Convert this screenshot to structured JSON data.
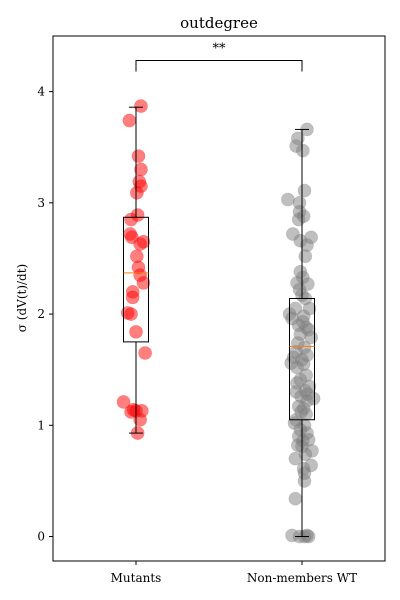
{
  "chart_data": {
    "type": "scatter",
    "title": "outdegree",
    "xlabel": "",
    "ylabel": "σ (dV(t)/dt)",
    "categories": [
      "Mutants",
      "Non-members WT"
    ],
    "ylim": [
      -0.22,
      4.5
    ],
    "yticks": [
      0,
      1,
      2,
      3,
      4
    ],
    "grid": false,
    "legend": "none",
    "significance": {
      "label": "**",
      "between": [
        "Mutants",
        "Non-members WT"
      ],
      "level": 4.28
    },
    "series": [
      {
        "category": "Mutants",
        "color": "#ff0000",
        "box": {
          "whisker_low": 0.93,
          "q1": 1.75,
          "median": 2.37,
          "q3": 2.87,
          "whisker_high": 3.86
        },
        "points": [
          {
            "x": 0.06,
            "y": 3.87
          },
          {
            "x": -0.08,
            "y": 3.74
          },
          {
            "x": 0.03,
            "y": 3.42
          },
          {
            "x": 0.06,
            "y": 3.3
          },
          {
            "x": 0.04,
            "y": 3.19
          },
          {
            "x": 0.06,
            "y": 3.15
          },
          {
            "x": 0.01,
            "y": 3.09
          },
          {
            "x": 0.02,
            "y": 2.89
          },
          {
            "x": -0.06,
            "y": 2.85
          },
          {
            "x": -0.07,
            "y": 2.72
          },
          {
            "x": -0.05,
            "y": 2.69
          },
          {
            "x": 0.09,
            "y": 2.65
          },
          {
            "x": 0.05,
            "y": 2.63
          },
          {
            "x": 0.01,
            "y": 2.52
          },
          {
            "x": 0.03,
            "y": 2.42
          },
          {
            "x": 0.05,
            "y": 2.35
          },
          {
            "x": 0.09,
            "y": 2.28
          },
          {
            "x": -0.04,
            "y": 2.2
          },
          {
            "x": -0.04,
            "y": 2.15
          },
          {
            "x": -0.1,
            "y": 2.01
          },
          {
            "x": -0.06,
            "y": 2.0
          },
          {
            "x": 0.0,
            "y": 1.84
          },
          {
            "x": 0.11,
            "y": 1.65
          },
          {
            "x": -0.15,
            "y": 1.21
          },
          {
            "x": -0.03,
            "y": 1.14
          },
          {
            "x": 0.0,
            "y": 1.13
          },
          {
            "x": -0.06,
            "y": 1.12
          },
          {
            "x": 0.07,
            "y": 1.13
          },
          {
            "x": 0.05,
            "y": 1.05
          },
          {
            "x": 0.02,
            "y": 0.93
          }
        ]
      },
      {
        "category": "Non-members WT",
        "color": "#808080",
        "box": {
          "whisker_low": 0.0,
          "q1": 1.05,
          "median": 1.71,
          "q3": 2.14,
          "whisker_high": 3.66
        },
        "points": [
          {
            "x": 0.06,
            "y": 3.66
          },
          {
            "x": -0.05,
            "y": 3.58
          },
          {
            "x": -0.07,
            "y": 3.51
          },
          {
            "x": 0.01,
            "y": 3.47
          },
          {
            "x": 0.03,
            "y": 3.11
          },
          {
            "x": -0.17,
            "y": 3.03
          },
          {
            "x": -0.03,
            "y": 3.0
          },
          {
            "x": -0.03,
            "y": 2.92
          },
          {
            "x": 0.02,
            "y": 2.88
          },
          {
            "x": -0.04,
            "y": 2.85
          },
          {
            "x": -0.11,
            "y": 2.72
          },
          {
            "x": 0.11,
            "y": 2.69
          },
          {
            "x": -0.02,
            "y": 2.66
          },
          {
            "x": 0.06,
            "y": 2.62
          },
          {
            "x": 0.04,
            "y": 2.52
          },
          {
            "x": -0.02,
            "y": 2.38
          },
          {
            "x": 0.01,
            "y": 2.33
          },
          {
            "x": -0.06,
            "y": 2.28
          },
          {
            "x": 0.07,
            "y": 2.27
          },
          {
            "x": -0.03,
            "y": 2.22
          },
          {
            "x": 0.0,
            "y": 2.17
          },
          {
            "x": 0.04,
            "y": 2.14
          },
          {
            "x": 0.09,
            "y": 2.05
          },
          {
            "x": -0.08,
            "y": 2.05
          },
          {
            "x": -0.15,
            "y": 2.0
          },
          {
            "x": 0.02,
            "y": 1.98
          },
          {
            "x": -0.12,
            "y": 1.96
          },
          {
            "x": 0.01,
            "y": 1.93
          },
          {
            "x": -0.04,
            "y": 1.9
          },
          {
            "x": 0.05,
            "y": 1.88
          },
          {
            "x": 0.08,
            "y": 1.86
          },
          {
            "x": -0.02,
            "y": 1.82
          },
          {
            "x": 0.11,
            "y": 1.79
          },
          {
            "x": -0.05,
            "y": 1.74
          },
          {
            "x": 0.03,
            "y": 1.7
          },
          {
            "x": -0.07,
            "y": 1.66
          },
          {
            "x": 0.06,
            "y": 1.63
          },
          {
            "x": -0.1,
            "y": 1.61
          },
          {
            "x": 0.0,
            "y": 1.59
          },
          {
            "x": -0.13,
            "y": 1.56
          },
          {
            "x": 0.02,
            "y": 1.55
          },
          {
            "x": -0.06,
            "y": 1.52
          },
          {
            "x": 0.05,
            "y": 1.45
          },
          {
            "x": -0.02,
            "y": 1.41
          },
          {
            "x": -0.06,
            "y": 1.38
          },
          {
            "x": 0.09,
            "y": 1.35
          },
          {
            "x": 0.04,
            "y": 1.31
          },
          {
            "x": -0.07,
            "y": 1.3
          },
          {
            "x": 0.07,
            "y": 1.28
          },
          {
            "x": 0.14,
            "y": 1.24
          },
          {
            "x": -0.01,
            "y": 1.26
          },
          {
            "x": 0.06,
            "y": 1.22
          },
          {
            "x": -0.04,
            "y": 1.17
          },
          {
            "x": 0.02,
            "y": 1.15
          },
          {
            "x": -0.01,
            "y": 1.12
          },
          {
            "x": 0.05,
            "y": 1.1
          },
          {
            "x": -0.07,
            "y": 1.05
          },
          {
            "x": -0.09,
            "y": 1.02
          },
          {
            "x": 0.03,
            "y": 1.0
          },
          {
            "x": -0.02,
            "y": 0.96
          },
          {
            "x": 0.06,
            "y": 0.93
          },
          {
            "x": -0.04,
            "y": 0.9
          },
          {
            "x": 0.01,
            "y": 0.86
          },
          {
            "x": 0.08,
            "y": 0.87
          },
          {
            "x": -0.05,
            "y": 0.82
          },
          {
            "x": 0.0,
            "y": 0.81
          },
          {
            "x": 0.12,
            "y": 0.77
          },
          {
            "x": 0.04,
            "y": 0.74
          },
          {
            "x": -0.08,
            "y": 0.7
          },
          {
            "x": 0.11,
            "y": 0.64
          },
          {
            "x": 0.02,
            "y": 0.61
          },
          {
            "x": 0.03,
            "y": 0.57
          },
          {
            "x": 0.03,
            "y": 0.5
          },
          {
            "x": -0.08,
            "y": 0.34
          },
          {
            "x": -0.12,
            "y": 0.01
          },
          {
            "x": -0.03,
            "y": 0.0
          },
          {
            "x": 0.03,
            "y": 0.0
          },
          {
            "x": 0.06,
            "y": 0.01
          },
          {
            "x": 0.08,
            "y": 0.0
          }
        ]
      }
    ]
  }
}
